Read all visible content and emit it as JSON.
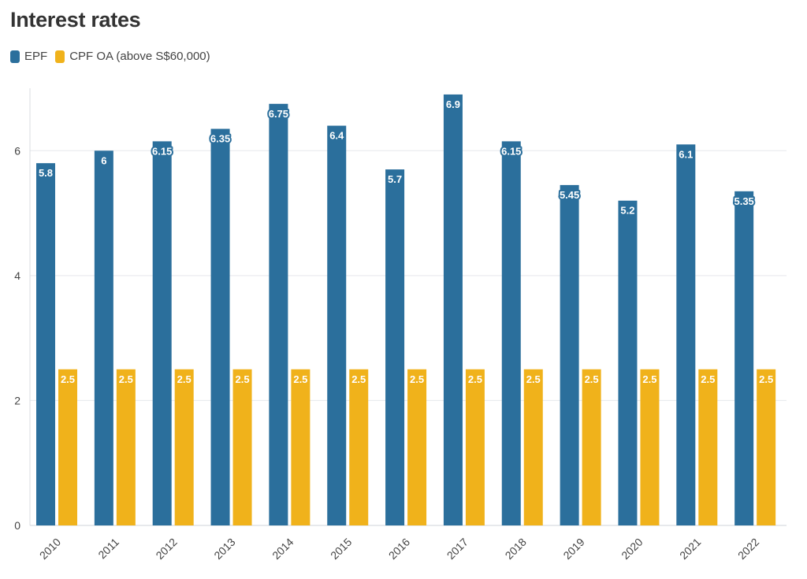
{
  "title": "Interest rates",
  "legend": [
    {
      "name": "EPF",
      "color": "#2b6f9c"
    },
    {
      "name": "CPF OA (above S$60,000)",
      "color": "#f0b21b"
    }
  ],
  "chart_data": {
    "type": "bar",
    "title": "Interest rates",
    "categories": [
      "2010",
      "2011",
      "2012",
      "2013",
      "2014",
      "2015",
      "2016",
      "2017",
      "2018",
      "2019",
      "2020",
      "2021",
      "2022"
    ],
    "series": [
      {
        "name": "EPF",
        "color": "#2b6f9c",
        "values": [
          5.8,
          6,
          6.15,
          6.35,
          6.75,
          6.4,
          5.7,
          6.9,
          6.15,
          5.45,
          5.2,
          6.1,
          5.35
        ]
      },
      {
        "name": "CPF OA (above S$60,000)",
        "color": "#f0b21b",
        "values": [
          2.5,
          2.5,
          2.5,
          2.5,
          2.5,
          2.5,
          2.5,
          2.5,
          2.5,
          2.5,
          2.5,
          2.5,
          2.5
        ]
      }
    ],
    "yticks": [
      0,
      2,
      4,
      6
    ],
    "ylim": [
      0,
      7
    ],
    "grid": true,
    "legend_position": "top-left",
    "data_labels": true
  }
}
